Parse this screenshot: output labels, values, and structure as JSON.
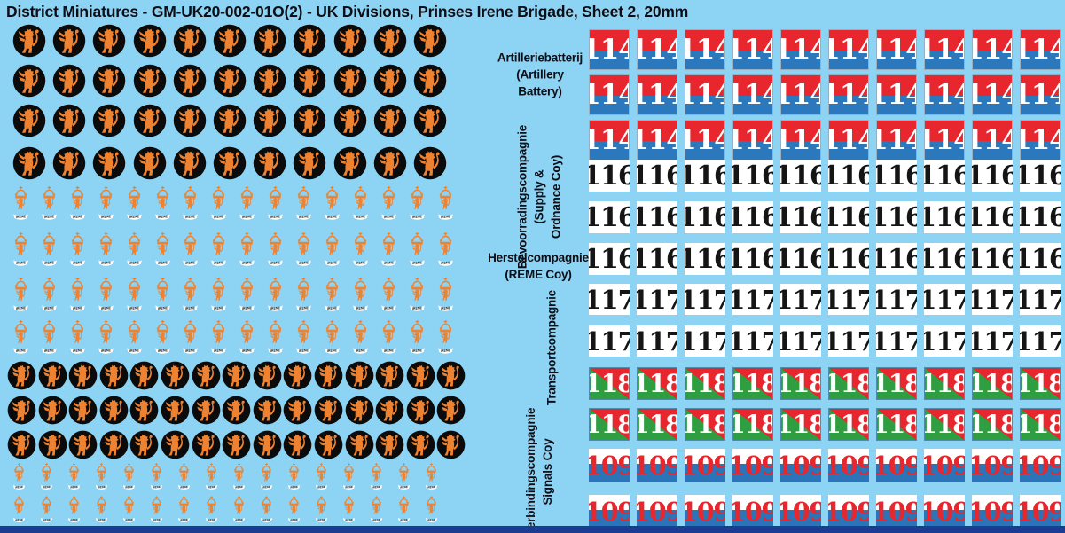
{
  "title": "District Miniatures - GM-UK20-002-01O(2) - UK Divisions, Prinses Irene Brigade, Sheet 2, 20mm",
  "colors": {
    "background": "#8DD3F3",
    "bottom_bar": "#1C3C94",
    "label_text": "#0E0E16",
    "roundel_black": "#0B0B0B",
    "lion_orange": "#EE8230",
    "decal_red": "#E8262D",
    "decal_blue": "#2B79BC",
    "decal_blue_109": "#2C74B8",
    "decal_green": "#2F9E41",
    "number_black": "#151515",
    "banner_white": "#FFFFFF"
  },
  "badges": {
    "irene_text": "IRENE",
    "lion_roundel_description": "orange-lion-on-black-roundel",
    "irene_badge_description": "orange-crown-lion-with-irene-scroll"
  },
  "labels": [
    {
      "id": "artillery-battery",
      "orientation": "horizontal",
      "lines": [
        "Artilleriebatterij",
        "(Artillery",
        "Battery)"
      ]
    },
    {
      "id": "supply-ordnance-coy",
      "orientation": "vertical",
      "lines": [
        "Bevoorradingscompagnie",
        "(Supply &",
        "Ordnance Coy)"
      ]
    },
    {
      "id": "reme-coy",
      "orientation": "horizontal",
      "lines": [
        "Herstelcompagnie",
        "(REME Coy)"
      ]
    },
    {
      "id": "transport-coy",
      "orientation": "vertical",
      "lines": [
        "Transportcompagnie"
      ]
    },
    {
      "id": "signals-coy",
      "orientation": "vertical",
      "lines": [
        "Verbindingscompagnie",
        "Signals Coy"
      ]
    }
  ],
  "number_sections": [
    {
      "number": "114",
      "style": "red-blue",
      "rows": 3,
      "cols": 10
    },
    {
      "number": "116",
      "style": "white-black",
      "rows": 3,
      "cols": 10
    },
    {
      "number": "117",
      "style": "white-black",
      "rows": 2,
      "cols": 10
    },
    {
      "number": "118",
      "style": "red-green-diagonal",
      "rows": 2,
      "cols": 10
    },
    {
      "number": "109",
      "style": "white-blue-red",
      "rows": 2,
      "cols": 10
    }
  ],
  "left_sheet_sections": [
    {
      "type": "lion-roundel",
      "rows": 4,
      "cols": 11
    },
    {
      "type": "irene-badge",
      "rows": 4,
      "cols": 16
    },
    {
      "type": "lion-roundel-small",
      "rows": 3,
      "cols": 15
    },
    {
      "type": "irene-badge-small",
      "rows": 2,
      "cols": 16
    }
  ]
}
